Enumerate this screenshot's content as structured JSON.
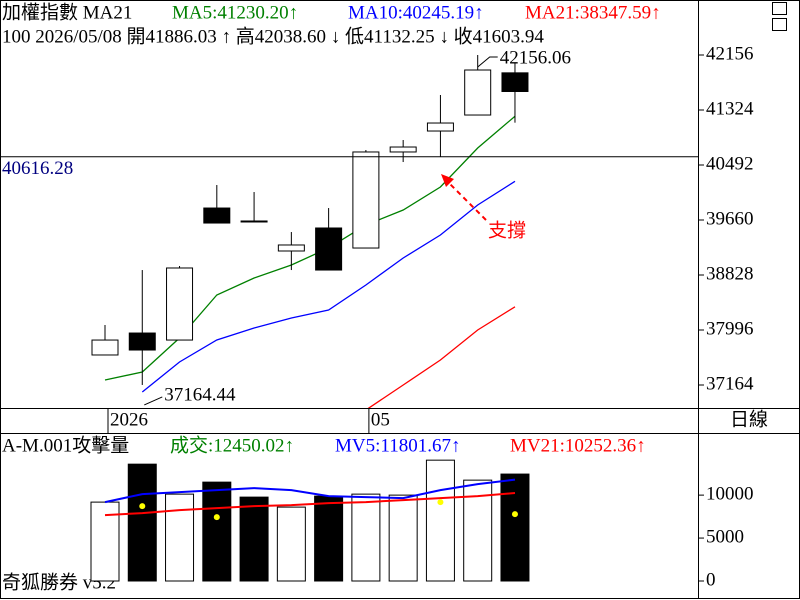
{
  "chart_data": [
    {
      "type": "candlestick",
      "title": "加權指數 MA21",
      "info": "100 2026/05/08 開41886.03 ↑ 高42038.60 ↓ 低41132.25 ↓ 收41603.94",
      "period": "日線",
      "categories": [
        "2026",
        null,
        null,
        null,
        null,
        null,
        null,
        "05",
        null,
        null,
        null,
        null
      ],
      "open": [
        37618,
        37950,
        37844,
        39841,
        39645,
        39191,
        39539,
        39236,
        40689,
        41006,
        41248,
        41886.03
      ],
      "high": [
        38071,
        38903,
        38964,
        40189,
        40083,
        39478,
        39841,
        40719,
        40870,
        41551,
        42156.06,
        42038.6
      ],
      "low": [
        37618,
        37164.44,
        37844,
        39614,
        39630,
        38903,
        38903,
        39236,
        40537,
        40613,
        41248,
        41132.25
      ],
      "close": [
        37844,
        37693,
        38934,
        39614,
        39630,
        39282,
        38903,
        40689,
        40764,
        41127,
        41929,
        41603.94
      ],
      "up_fill": "#ffffff",
      "down_fill": "#000000",
      "series": [
        {
          "name": "MA5:41230.20↑",
          "color": "#008000",
          "values": [
            37239,
            37360,
            37875,
            38525,
            38782,
            38979,
            39236,
            39584,
            39811,
            40159,
            40749,
            41230.2
          ]
        },
        {
          "name": "MA10:40245.19↑",
          "color": "#0000ff",
          "values": [
            null,
            37058,
            37512,
            37844,
            38026,
            38177,
            38298,
            38676,
            39085,
            39433,
            39887,
            40245.19
          ]
        },
        {
          "name": "MA21:38347.59↑",
          "color": "#ff0000",
          "values": [
            null,
            null,
            null,
            null,
            null,
            null,
            null,
            36785,
            37164,
            37542,
            37996,
            38347.59
          ]
        }
      ],
      "hline": 40616.28,
      "annotation": {
        "text": "支撐",
        "color": "#ff0000"
      },
      "ylim": [
        36816,
        42988
      ],
      "yticks": [
        37164,
        37996,
        38828,
        39660,
        40492,
        41324,
        42156
      ]
    },
    {
      "type": "bar",
      "title": "A-M.001攻擊量",
      "values": [
        9186,
        13605,
        10116,
        11512,
        9767,
        8605,
        9884,
        10116,
        10000,
        14070,
        11744,
        12450.02
      ],
      "series": [
        {
          "name": "成交:12450.02↑",
          "color": "#008000"
        },
        {
          "name": "MV5:11801.67↑",
          "color": "#0000ff",
          "values": [
            9186,
            10116,
            10349,
            10581,
            10814,
            10581,
            9884,
            9767,
            9651,
            10581,
            11279,
            11801.67
          ]
        },
        {
          "name": "MV21:10252.36↑",
          "color": "#ff0000",
          "values": [
            7674,
            7907,
            8256,
            8488,
            8721,
            8837,
            9070,
            9186,
            9419,
            9651,
            9884,
            10252.36
          ]
        }
      ],
      "dots": {
        "color": "#ffff00",
        "values": [
          null,
          8721,
          null,
          7442,
          null,
          null,
          null,
          null,
          null,
          9186,
          null,
          7791
        ]
      },
      "ylim": [
        0,
        17000
      ],
      "yticks": [
        0,
        5000,
        10000
      ],
      "footer": "奇狐勝券 v5.2"
    }
  ]
}
